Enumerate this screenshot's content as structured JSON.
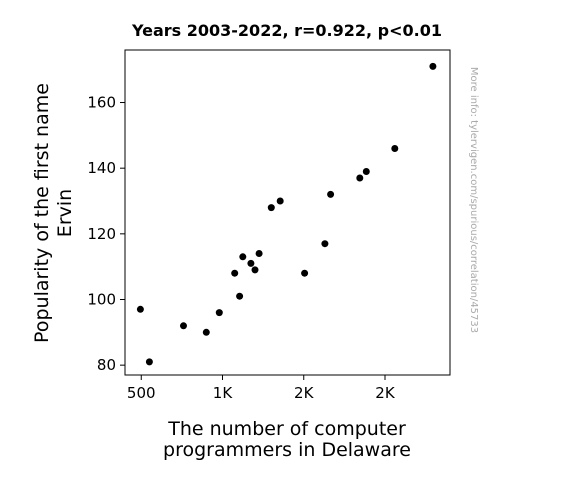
{
  "chart_data": {
    "type": "scatter",
    "title": "Years 2003-2022, r=0.922, p<0.01",
    "xlabel_lines": [
      "The number of computer",
      "programmers in Delaware"
    ],
    "ylabel_lines": [
      "Popularity of the first name",
      "Ervin"
    ],
    "watermark": "More info: tylervigen.com/spurious/correlation/45733",
    "xlim": [
      400,
      2400
    ],
    "ylim": [
      77,
      176
    ],
    "x_ticks": [
      {
        "value": 500,
        "label": "500"
      },
      {
        "value": 1000,
        "label": "1K"
      },
      {
        "value": 1500,
        "label": "2K"
      },
      {
        "value": 2000,
        "label": "2K"
      }
    ],
    "y_ticks": [
      {
        "value": 80,
        "label": "80"
      },
      {
        "value": 100,
        "label": "100"
      },
      {
        "value": 120,
        "label": "120"
      },
      {
        "value": 140,
        "label": "140"
      },
      {
        "value": 160,
        "label": "160"
      }
    ],
    "grid": false,
    "marker_color": "#000000",
    "points": [
      {
        "x": 495,
        "y": 97
      },
      {
        "x": 550,
        "y": 81
      },
      {
        "x": 760,
        "y": 92
      },
      {
        "x": 900,
        "y": 90
      },
      {
        "x": 980,
        "y": 96
      },
      {
        "x": 1075,
        "y": 108
      },
      {
        "x": 1105,
        "y": 101
      },
      {
        "x": 1125,
        "y": 113
      },
      {
        "x": 1175,
        "y": 111
      },
      {
        "x": 1200,
        "y": 109
      },
      {
        "x": 1225,
        "y": 114
      },
      {
        "x": 1300,
        "y": 128
      },
      {
        "x": 1355,
        "y": 130
      },
      {
        "x": 1505,
        "y": 108
      },
      {
        "x": 1630,
        "y": 117
      },
      {
        "x": 1665,
        "y": 132
      },
      {
        "x": 1845,
        "y": 137
      },
      {
        "x": 1885,
        "y": 139
      },
      {
        "x": 2060,
        "y": 146
      },
      {
        "x": 2295,
        "y": 171
      }
    ]
  }
}
